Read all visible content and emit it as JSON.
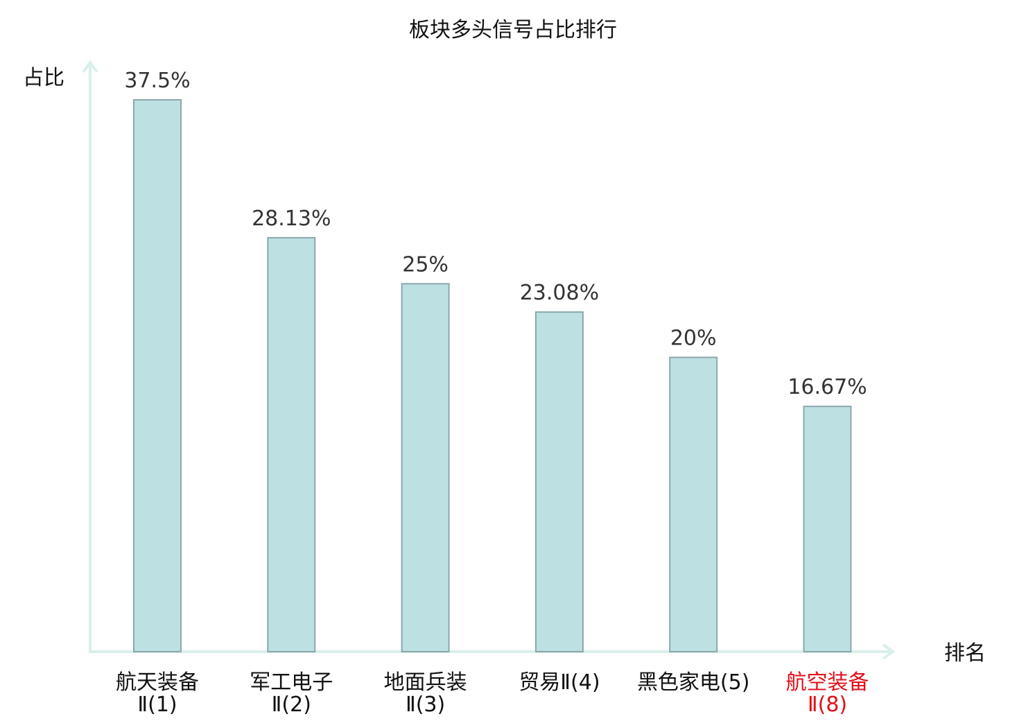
{
  "chart_data": {
    "type": "bar",
    "title": "板块多头信号占比排行",
    "ylabel": "占比",
    "xlabel": "排名",
    "ylim": [
      0,
      37.5
    ],
    "grid": false,
    "categories": [
      {
        "line1": "航天装备",
        "line2": "Ⅱ(1)",
        "highlight": false
      },
      {
        "line1": "军工电子",
        "line2": "Ⅱ(2)",
        "highlight": false
      },
      {
        "line1": "地面兵装",
        "line2": "Ⅱ(3)",
        "highlight": false
      },
      {
        "line1": "贸易Ⅱ(4)",
        "line2": "",
        "highlight": false
      },
      {
        "line1": "黑色家电(5)",
        "line2": "",
        "highlight": false
      },
      {
        "line1": "航空装备",
        "line2": "Ⅱ(8)",
        "highlight": true
      }
    ],
    "values": [
      37.5,
      28.13,
      25,
      23.08,
      20,
      16.67
    ],
    "value_labels": [
      "37.5%",
      "28.13%",
      "25%",
      "23.08%",
      "20%",
      "16.67%"
    ],
    "colors": {
      "bar_fill": "#bde0e3",
      "bar_stroke": "#8aa8ab",
      "axis": "#d9efec",
      "highlight_text": "#e0101a",
      "text": "#111111"
    }
  }
}
